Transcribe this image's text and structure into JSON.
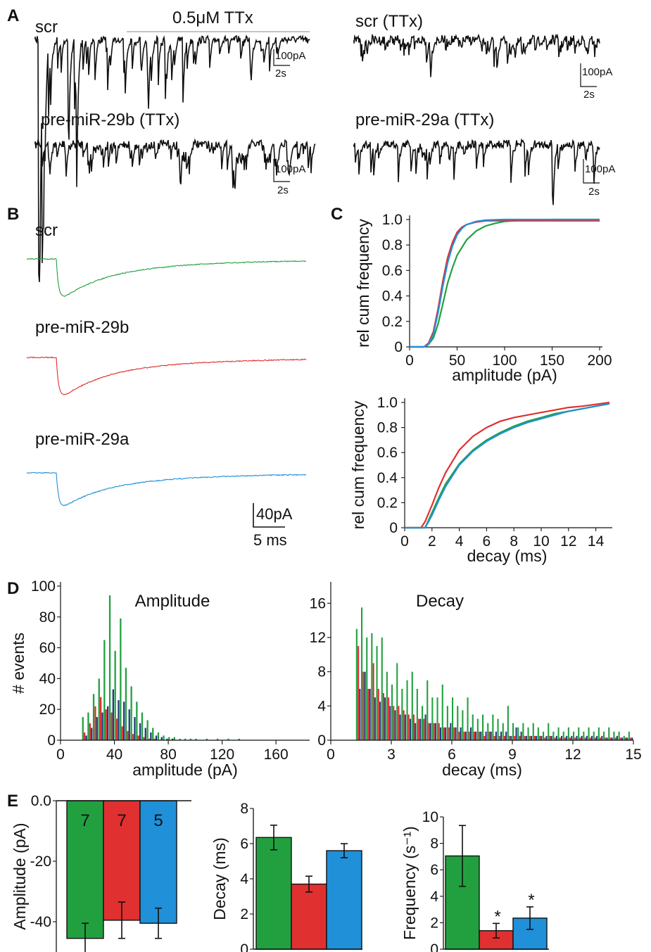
{
  "colors": {
    "scr": "#22a040",
    "pre_mir_29b": "#e03030",
    "pre_mir_29a": "#2090d8",
    "trace": "#111111",
    "dark_bar": "#1f3b7a"
  },
  "panel_letters": [
    "A",
    "B",
    "C",
    "D",
    "E"
  ],
  "panel_a": {
    "traces": [
      {
        "label": "scr",
        "drug_label": "0.5μM TTx",
        "scale_y": "100pA",
        "scale_x": "2s"
      },
      {
        "label": "scr (TTx)",
        "scale_y": "100pA",
        "scale_x": "2s"
      },
      {
        "label": "pre-miR-29b (TTx)",
        "scale_y": "100pA",
        "scale_x": "2s"
      },
      {
        "label": "pre-miR-29a (TTx)",
        "scale_y": "100pA",
        "scale_x": "2s"
      }
    ]
  },
  "panel_b": {
    "traces": [
      {
        "label": "scr",
        "color": "#22a040"
      },
      {
        "label": "pre-miR-29b",
        "color": "#e03030"
      },
      {
        "label": "pre-miR-29a",
        "color": "#2090d8"
      }
    ],
    "scale_y": "40pA",
    "scale_x": "5 ms"
  },
  "chart_data": [
    {
      "type": "line",
      "panel": "C",
      "xlabel": "amplitude (pA)",
      "ylabel": "rel cum frequency",
      "xlim": [
        0,
        200
      ],
      "ylim": [
        0,
        1.0
      ],
      "xticks": [
        "0",
        "50",
        "100",
        "150",
        "200"
      ],
      "yticks": [
        "0",
        "0.2",
        "0.4",
        "0.6",
        "0.8",
        "1.0"
      ],
      "series": [
        {
          "color": "#22a040",
          "x": [
            0,
            15,
            20,
            25,
            30,
            35,
            40,
            45,
            50,
            60,
            70,
            80,
            90,
            100,
            120,
            150,
            200
          ],
          "y": [
            0,
            0,
            0.02,
            0.07,
            0.18,
            0.34,
            0.5,
            0.62,
            0.72,
            0.84,
            0.91,
            0.95,
            0.97,
            0.985,
            0.995,
            1.0,
            1.0
          ]
        },
        {
          "color": "#e03030",
          "x": [
            0,
            15,
            20,
            25,
            30,
            35,
            40,
            45,
            50,
            55,
            60,
            70,
            80,
            100,
            150,
            200
          ],
          "y": [
            0,
            0,
            0.03,
            0.12,
            0.3,
            0.52,
            0.7,
            0.82,
            0.9,
            0.94,
            0.96,
            0.98,
            0.99,
            0.99,
            0.99,
            0.99
          ]
        },
        {
          "color": "#2090d8",
          "x": [
            0,
            15,
            20,
            25,
            30,
            35,
            40,
            45,
            50,
            55,
            60,
            70,
            80,
            100,
            150,
            200
          ],
          "y": [
            0,
            0,
            0.02,
            0.1,
            0.27,
            0.48,
            0.66,
            0.79,
            0.88,
            0.93,
            0.96,
            0.985,
            0.995,
            1.0,
            1.0,
            1.0
          ]
        }
      ]
    },
    {
      "type": "line",
      "panel": "C",
      "xlabel": "decay (ms)",
      "ylabel": "rel cum frequency",
      "xlim": [
        0,
        15
      ],
      "ylim": [
        0,
        1.0
      ],
      "xticks": [
        "0",
        "2",
        "4",
        "6",
        "8",
        "10",
        "12",
        "14"
      ],
      "yticks": [
        "0",
        "0.2",
        "0.4",
        "0.6",
        "0.8",
        "1.0"
      ],
      "series": [
        {
          "color": "#22a040",
          "x": [
            0,
            1.5,
            2,
            2.5,
            3,
            4,
            5,
            6,
            7,
            8,
            9,
            10,
            11,
            12,
            13,
            14,
            15
          ],
          "y": [
            0,
            0,
            0.12,
            0.24,
            0.35,
            0.51,
            0.62,
            0.7,
            0.76,
            0.81,
            0.85,
            0.88,
            0.91,
            0.93,
            0.95,
            0.97,
            0.99
          ]
        },
        {
          "color": "#e03030",
          "x": [
            0,
            1.2,
            1.5,
            2,
            2.5,
            3,
            4,
            5,
            6,
            7,
            8,
            9,
            10,
            11,
            12,
            13,
            14,
            15
          ],
          "y": [
            0,
            0,
            0.05,
            0.18,
            0.32,
            0.44,
            0.62,
            0.73,
            0.8,
            0.85,
            0.88,
            0.9,
            0.92,
            0.94,
            0.96,
            0.97,
            0.985,
            1.0
          ]
        },
        {
          "color": "#2090d8",
          "x": [
            0,
            1.5,
            2,
            2.5,
            3,
            4,
            5,
            6,
            7,
            8,
            9,
            10,
            11,
            12,
            13,
            14,
            15
          ],
          "y": [
            0,
            0,
            0.1,
            0.22,
            0.33,
            0.5,
            0.61,
            0.69,
            0.75,
            0.8,
            0.84,
            0.87,
            0.9,
            0.93,
            0.95,
            0.97,
            0.99
          ]
        }
      ]
    },
    {
      "type": "bar",
      "panel": "D",
      "title": "Amplitude",
      "xlabel": "amplitude (pA)",
      "ylabel": "# events",
      "xlim": [
        0,
        185
      ],
      "ylim": [
        0,
        100
      ],
      "xticks": [
        "0",
        "40",
        "80",
        "120",
        "160"
      ],
      "yticks": [
        "0",
        "20",
        "40",
        "60",
        "80",
        "100"
      ],
      "bin_width": 4,
      "x": [
        16,
        20,
        24,
        28,
        32,
        36,
        40,
        44,
        48,
        52,
        56,
        60,
        64,
        68,
        72,
        76,
        80,
        84,
        88,
        92,
        96,
        100,
        104,
        108,
        112,
        116,
        120,
        124,
        128,
        132,
        136
      ],
      "series": [
        {
          "color": "#22a040",
          "values": [
            15,
            18,
            30,
            40,
            65,
            94,
            58,
            79,
            47,
            35,
            25,
            18,
            13,
            8,
            5,
            3,
            2,
            2,
            1,
            1,
            1,
            1,
            0,
            1,
            0,
            1,
            0,
            1,
            0,
            1,
            0
          ]
        },
        {
          "color": "#e03030",
          "values": [
            5,
            11,
            22,
            28,
            20,
            18,
            14,
            9,
            6,
            4,
            3,
            2,
            1,
            1,
            0,
            0,
            0,
            0,
            0,
            0,
            0,
            0,
            0,
            0,
            0,
            0,
            0,
            0,
            0,
            0,
            0
          ]
        },
        {
          "color": "#1f3b7a",
          "values": [
            3,
            8,
            15,
            18,
            22,
            33,
            26,
            25,
            20,
            15,
            11,
            8,
            5,
            3,
            2,
            1,
            1,
            0,
            0,
            0,
            0,
            0,
            0,
            0,
            0,
            0,
            0,
            0,
            0,
            0,
            0
          ]
        }
      ]
    },
    {
      "type": "bar",
      "panel": "D",
      "title": "Decay",
      "xlabel": "decay (ms)",
      "ylabel": "",
      "xlim": [
        0,
        15
      ],
      "ylim": [
        0,
        18
      ],
      "xticks": [
        "0",
        "3",
        "6",
        "9",
        "12",
        "15"
      ],
      "yticks": [
        "0",
        "4",
        "8",
        "12",
        "16"
      ],
      "bin_width": 0.25,
      "x": [
        1.25,
        1.5,
        1.75,
        2.0,
        2.25,
        2.5,
        2.75,
        3.0,
        3.25,
        3.5,
        3.75,
        4.0,
        4.25,
        4.5,
        4.75,
        5.0,
        5.25,
        5.5,
        5.75,
        6.0,
        6.25,
        6.5,
        6.75,
        7.0,
        7.25,
        7.5,
        7.75,
        8.0,
        8.25,
        8.5,
        8.75,
        9.0,
        9.25,
        9.5,
        9.75,
        10.0,
        10.25,
        10.5,
        10.75,
        11.0,
        11.25,
        11.5,
        11.75,
        12.0,
        12.25,
        12.5,
        12.75,
        13.0,
        13.25,
        13.5,
        13.75,
        14.0,
        14.25,
        14.5,
        14.75
      ],
      "series": [
        {
          "color": "#22a040",
          "values": [
            13,
            15.5,
            12,
            12.5,
            11,
            12,
            8,
            6.5,
            9,
            6,
            7,
            8,
            6,
            4,
            7,
            5,
            5,
            6.5,
            4,
            5,
            4,
            3.5,
            5,
            3,
            2.5,
            3,
            2,
            3,
            2.5,
            2,
            4,
            2,
            1.5,
            2,
            1.5,
            2,
            1.5,
            1,
            2,
            1,
            1.5,
            1,
            1.5,
            1,
            1.5,
            1,
            1.5,
            1,
            1.5,
            1,
            1.5,
            1,
            1,
            0.5,
            1
          ]
        },
        {
          "color": "#e03030",
          "values": [
            11,
            8,
            6,
            9,
            6,
            5.5,
            5,
            4,
            4,
            3.5,
            3,
            3,
            2.5,
            2.5,
            2,
            2,
            2,
            1.5,
            1.5,
            1.5,
            1,
            1,
            1,
            1,
            1,
            0.5,
            1,
            0.5,
            0.5,
            0.5,
            0.5,
            0.5,
            0.5,
            0.5,
            0.5,
            0.5,
            0.5,
            0.3,
            0.5,
            0.3,
            0.3,
            0.3,
            0.3,
            0.3,
            0.3,
            0.3,
            0.3,
            0.3,
            0.3,
            0.3,
            0.3,
            0.3,
            0.3,
            0.3,
            0.3
          ]
        },
        {
          "color": "#1f3b7a",
          "values": [
            6,
            8,
            6,
            5,
            4.5,
            5,
            4,
            3.5,
            3,
            3,
            2.5,
            2,
            2.5,
            3,
            2,
            2,
            1.5,
            1.5,
            2,
            1.5,
            1.5,
            1,
            1.5,
            1,
            1,
            1,
            1,
            1,
            1,
            1,
            0.5,
            1.5,
            1,
            0.5,
            0.5,
            0.5,
            0.5,
            0.5,
            0.5,
            0.5,
            0.5,
            0.5,
            0.5,
            0.5,
            0.5,
            0.5,
            0.5,
            0.5,
            0.5,
            0.3,
            0.3,
            0.5,
            0.3,
            0.3,
            0.3
          ]
        }
      ]
    },
    {
      "type": "bar",
      "panel": "E",
      "ylabel": "Amplitude (pA)",
      "ylim": [
        -50,
        0
      ],
      "yticks": [
        "0.0",
        "-20",
        "-40"
      ],
      "series": [
        {
          "color": "#22a040",
          "value": -45.5,
          "err": 5,
          "n": "7"
        },
        {
          "color": "#e03030",
          "value": -39.5,
          "err": 6,
          "n": "7"
        },
        {
          "color": "#2090d8",
          "value": -40.5,
          "err": 5,
          "n": "5"
        }
      ]
    },
    {
      "type": "bar",
      "panel": "E",
      "ylabel": "Decay (ms)",
      "ylim": [
        0,
        8
      ],
      "yticks": [
        "0",
        "2",
        "4",
        "6",
        "8"
      ],
      "series": [
        {
          "color": "#22a040",
          "value": 6.35,
          "err": 0.7
        },
        {
          "color": "#e03030",
          "value": 3.7,
          "err": 0.45
        },
        {
          "color": "#2090d8",
          "value": 5.6,
          "err": 0.4
        }
      ]
    },
    {
      "type": "bar",
      "panel": "E",
      "ylabel": "Frequency (s⁻¹)",
      "ylim": [
        0,
        10
      ],
      "yticks": [
        "0",
        "2",
        "4",
        "6",
        "8",
        "10"
      ],
      "series": [
        {
          "color": "#22a040",
          "value": 7.05,
          "err": 2.3,
          "sig": ""
        },
        {
          "color": "#e03030",
          "value": 1.4,
          "err": 0.55,
          "sig": "*"
        },
        {
          "color": "#2090d8",
          "value": 2.35,
          "err": 0.85,
          "sig": "*"
        }
      ]
    }
  ]
}
